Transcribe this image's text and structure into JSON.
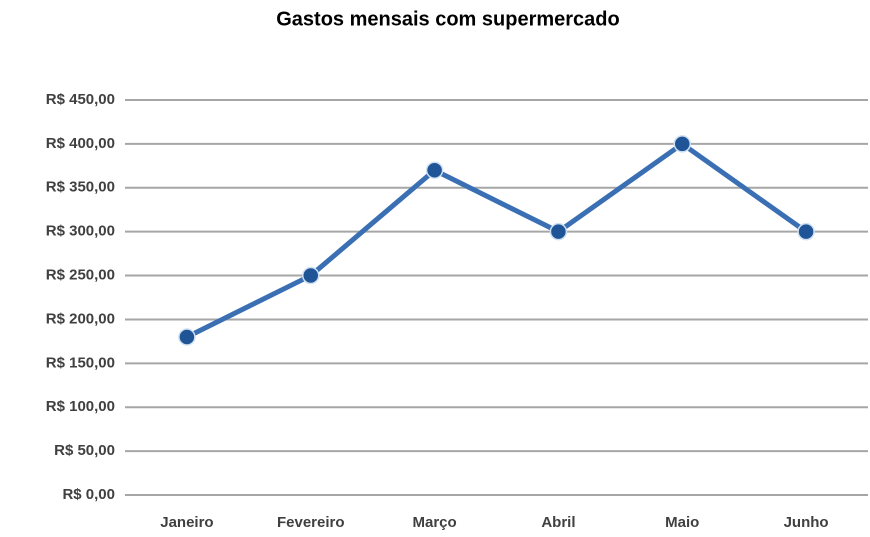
{
  "chart_data": {
    "type": "line",
    "title": "Gastos mensais com supermercado",
    "categories": [
      "Janeiro",
      "Fevereiro",
      "Março",
      "Abril",
      "Maio",
      "Junho"
    ],
    "series": [
      {
        "name": "Gastos",
        "color": "#3a70b3",
        "values": [
          180,
          250,
          370,
          300,
          400,
          300
        ]
      }
    ],
    "ylim": [
      0,
      450
    ],
    "yticks": [
      {
        "value": 0,
        "label": "R$ 0,00"
      },
      {
        "value": 50,
        "label": "R$ 50,00"
      },
      {
        "value": 100,
        "label": "R$ 100,00"
      },
      {
        "value": 150,
        "label": "R$ 150,00"
      },
      {
        "value": 200,
        "label": "R$ 200,00"
      },
      {
        "value": 250,
        "label": "R$ 250,00"
      },
      {
        "value": 300,
        "label": "R$ 300,00"
      },
      {
        "value": 350,
        "label": "R$ 350,00"
      },
      {
        "value": 400,
        "label": "R$ 400,00"
      },
      {
        "value": 450,
        "label": "R$ 450,00"
      }
    ],
    "grid": true
  }
}
